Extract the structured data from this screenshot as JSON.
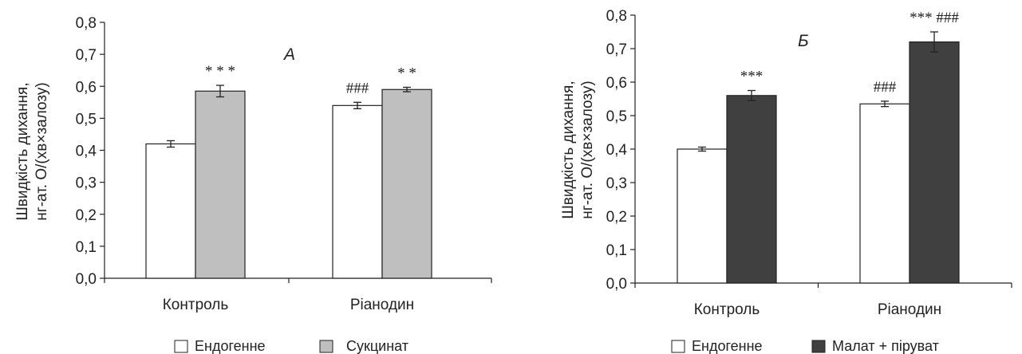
{
  "chart_data": [
    {
      "type": "bar",
      "panel_label": "А",
      "ylabel": [
        "Швидкість дихання,",
        "нг-ат. О/(хв×залозу)"
      ],
      "ylim": [
        0,
        0.8
      ],
      "yticks": [
        "0,0",
        "0,1",
        "0,2",
        "0,3",
        "0,4",
        "0,5",
        "0,6",
        "0,7",
        "0,8"
      ],
      "categories": [
        "Контроль",
        "Ріанодин"
      ],
      "series": [
        {
          "name": "Ендогенне",
          "color": "#ffffff",
          "values": [
            0.42,
            0.54
          ],
          "errors": [
            0.01,
            0.01
          ],
          "annotations": [
            "",
            "###"
          ]
        },
        {
          "name": "Сукцинат",
          "color": "#bfbfbf",
          "values": [
            0.585,
            0.59
          ],
          "errors": [
            0.018,
            0.007
          ],
          "annotations": [
            "* * *",
            "* *"
          ]
        }
      ],
      "legend": "bottom"
    },
    {
      "type": "bar",
      "panel_label": "Б",
      "ylabel": [
        "Швидкість дихання,",
        "нг-ат. О/(хв×залозу)"
      ],
      "ylim": [
        0,
        0.8
      ],
      "yticks": [
        "0,0",
        "0,1",
        "0,2",
        "0,3",
        "0,4",
        "0,5",
        "0,6",
        "0,7",
        "0,8"
      ],
      "categories": [
        "Контроль",
        "Ріанодин"
      ],
      "series": [
        {
          "name": "Ендогенне",
          "color": "#ffffff",
          "values": [
            0.4,
            0.535
          ],
          "errors": [
            0.006,
            0.008
          ],
          "annotations": [
            "",
            "###"
          ]
        },
        {
          "name": "Малат + піруват",
          "color": "#404040",
          "values": [
            0.56,
            0.72
          ],
          "errors": [
            0.015,
            0.03
          ],
          "annotations": [
            "***",
            "*** ###"
          ]
        }
      ],
      "legend": "bottom"
    }
  ]
}
